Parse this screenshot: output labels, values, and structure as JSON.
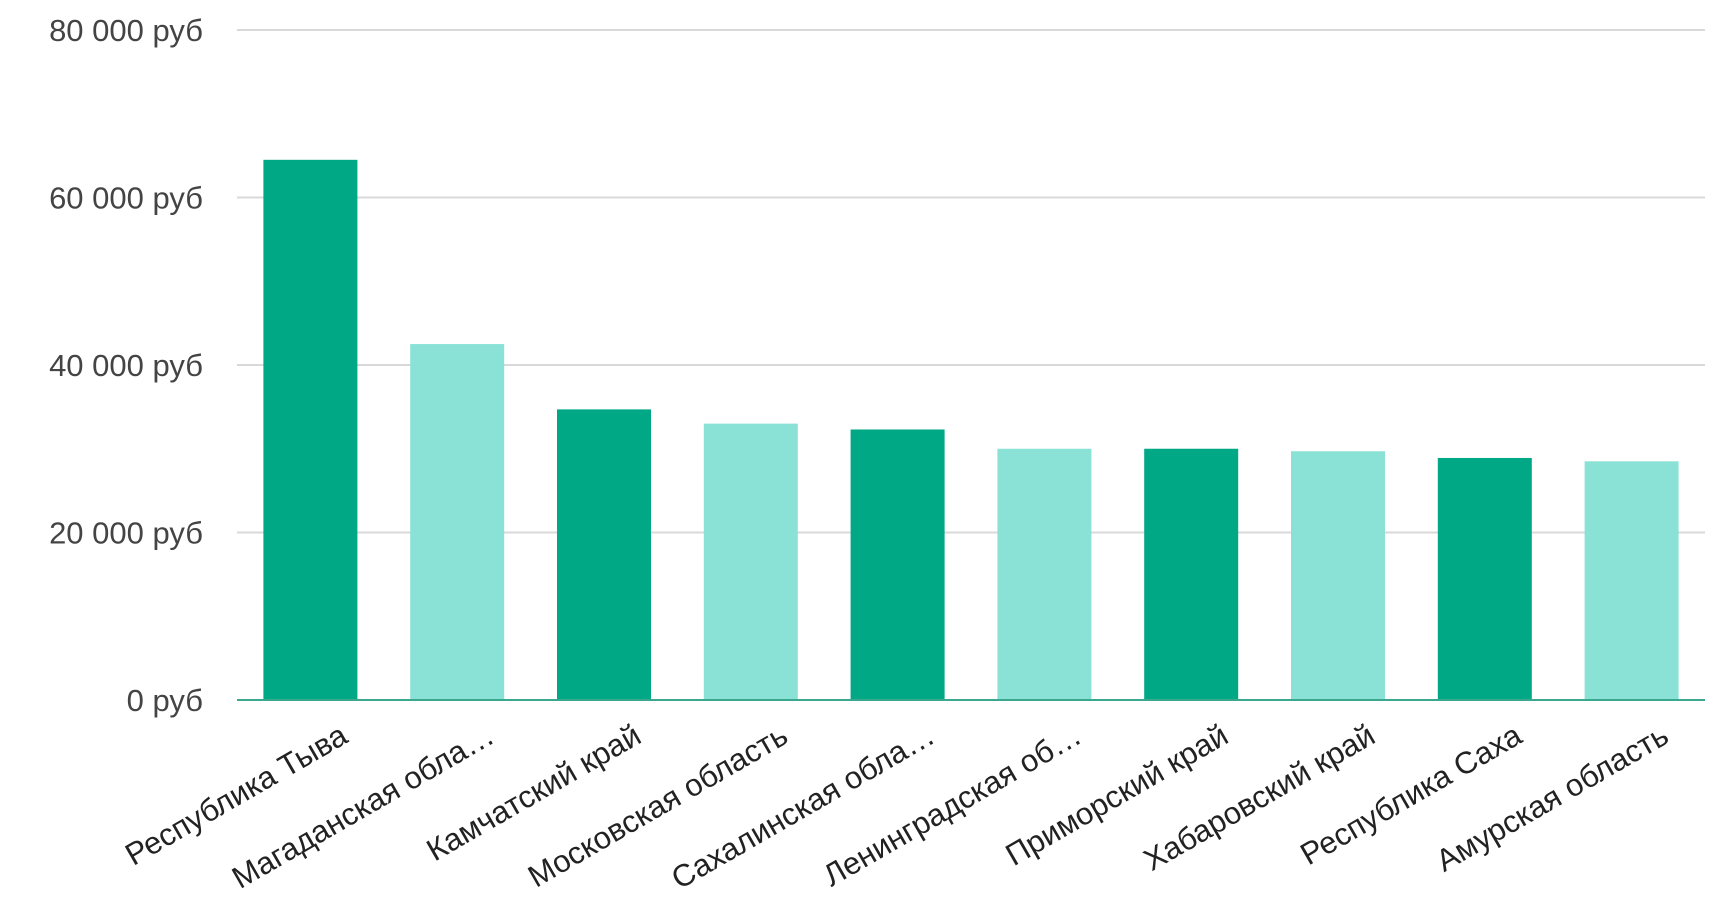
{
  "chart_data": {
    "type": "bar",
    "categories": [
      "Республика Тыва",
      "Магаданская обла…",
      "Камчатский край",
      "Московская область",
      "Сахалинская обла…",
      "Ленинградская об…",
      "Приморский край",
      "Хабаровский край",
      "Республика Саха",
      "Амурская область"
    ],
    "values": [
      64500,
      42500,
      34700,
      33000,
      32300,
      30000,
      30000,
      29700,
      28900,
      28500
    ],
    "ylim": [
      0,
      80000
    ],
    "yticks": [
      0,
      20000,
      40000,
      60000,
      80000
    ],
    "ytick_labels": [
      "0 руб",
      "20 000 руб",
      "40 000 руб",
      "60 000 руб",
      "80 000 руб"
    ],
    "title": "",
    "xlabel": "",
    "ylabel": "",
    "grid": true,
    "legend": "none",
    "colors": {
      "bar_dark": "#00a885",
      "bar_light": "#8ae2d6",
      "gridline": "#d9d9d9",
      "baseline": "#3aa88f",
      "tick_text": "#444444",
      "category_text": "#222222"
    }
  }
}
